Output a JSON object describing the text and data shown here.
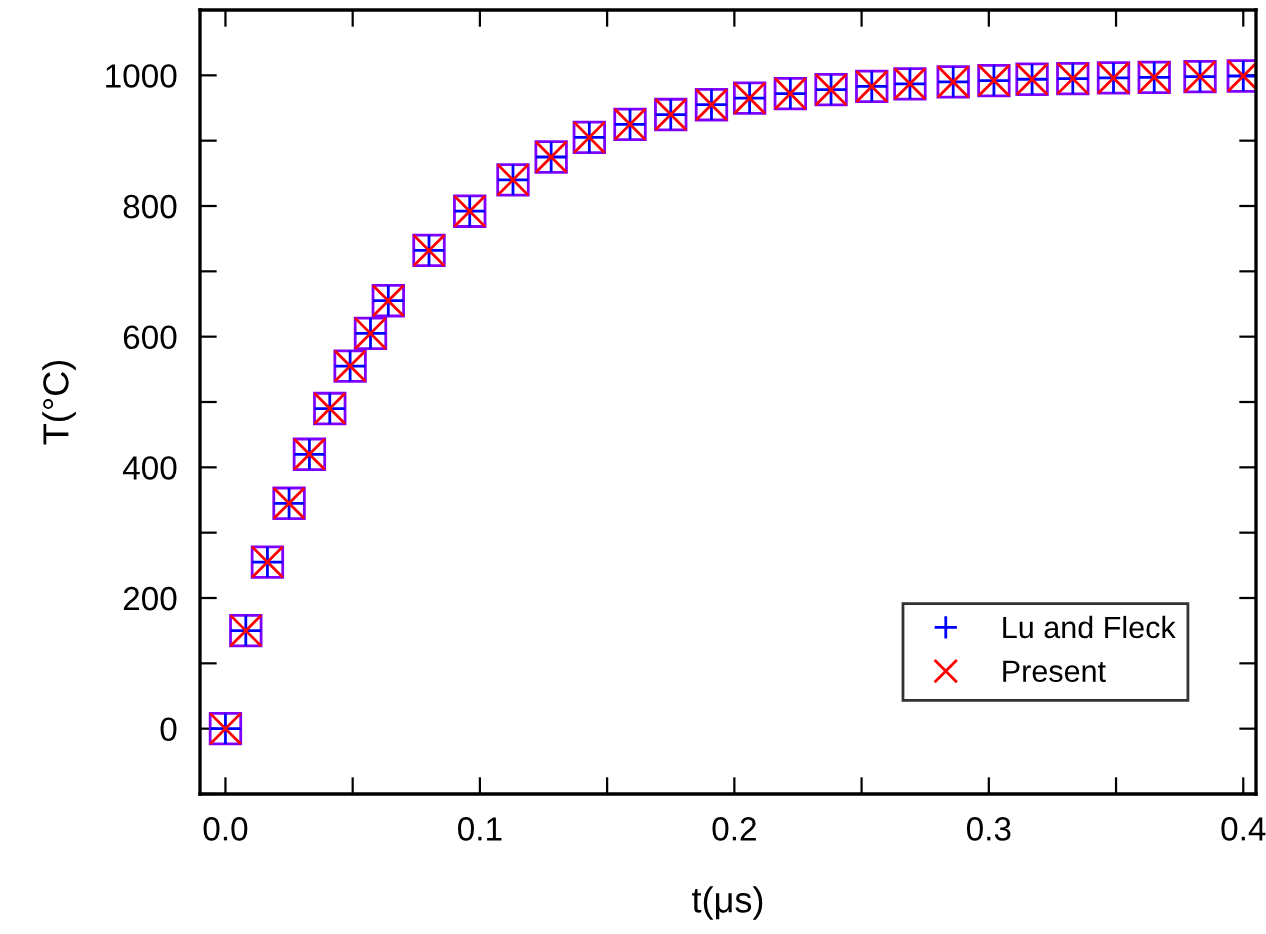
{
  "chart_data": {
    "type": "scatter",
    "xlabel": "t(μs)",
    "ylabel": "T(°C)",
    "x": [
      0,
      0.008,
      0.0165,
      0.025,
      0.033,
      0.041,
      0.049,
      0.057,
      0.064,
      0.08,
      0.096,
      0.113,
      0.128,
      0.143,
      0.159,
      0.175,
      0.191,
      0.206,
      0.222,
      0.238,
      0.254,
      0.269,
      0.286,
      0.302,
      0.317,
      0.333,
      0.349,
      0.365,
      0.383,
      0.4
    ],
    "series": [
      {
        "color": "#8000ff",
        "marker": "square",
        "values": [
          0,
          150,
          255,
          345,
          420,
          490,
          555,
          605,
          655,
          732,
          792,
          840,
          875,
          905,
          925,
          940,
          955,
          965,
          972,
          978,
          983,
          987,
          990,
          992,
          994,
          995,
          996,
          997,
          998,
          999
        ]
      },
      {
        "name": "Lu and Fleck",
        "color": "#0000ff",
        "marker": "cross",
        "values": [
          0,
          150,
          255,
          345,
          420,
          490,
          555,
          605,
          655,
          732,
          792,
          840,
          875,
          905,
          925,
          940,
          955,
          965,
          972,
          978,
          983,
          987,
          990,
          992,
          994,
          995,
          996,
          997,
          998,
          999
        ]
      },
      {
        "name": "Present",
        "color": "#ff0000",
        "marker": "x",
        "values": [
          0,
          150,
          255,
          345,
          420,
          490,
          555,
          605,
          655,
          732,
          792,
          840,
          875,
          905,
          925,
          940,
          955,
          965,
          972,
          978,
          983,
          987,
          990,
          992,
          994,
          995,
          996,
          997,
          998,
          999
        ]
      }
    ],
    "xlim": [
      -0.01,
      0.405
    ],
    "ylim": [
      -100,
      1100
    ],
    "xticks": [
      {
        "value": 0,
        "label": "0.0"
      },
      {
        "value": 0.05,
        "label": null
      },
      {
        "value": 0.1,
        "label": "0.1"
      },
      {
        "value": 0.15,
        "label": null
      },
      {
        "value": 0.2,
        "label": "0.2"
      },
      {
        "value": 0.25,
        "label": null
      },
      {
        "value": 0.3,
        "label": "0.3"
      },
      {
        "value": 0.35,
        "label": null
      },
      {
        "value": 0.4,
        "label": "0.4"
      }
    ],
    "yticks": [
      {
        "value": -100,
        "label": null
      },
      0,
      {
        "value": 100,
        "label": null
      },
      200,
      {
        "value": 300,
        "label": null
      },
      400,
      {
        "value": 500,
        "label": null
      },
      600,
      {
        "value": 700,
        "label": null
      },
      800,
      {
        "value": 900,
        "label": null
      },
      1000
    ],
    "grid": false,
    "legend": "bottom right"
  }
}
